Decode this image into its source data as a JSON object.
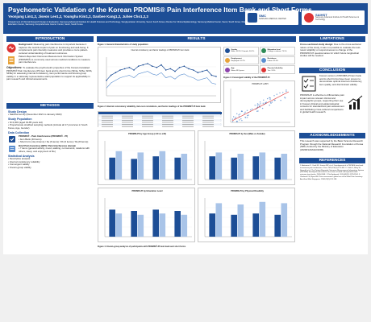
{
  "header": {
    "title": "Psychometric Validation of the Korean PROMIS® Pain Interference Item Bank and Short Forms",
    "authors": "Yeonjung Lim1,2, Jiseon Lee1,2, Youngha Kim1,2, Danbee Kang1,2, Juhee Cho1,2,3",
    "affiliations": "1Department of Clinical Research Design & Evaluation, Samsung Advanced Institute for Health Sciences and Technology, Sungkyunkwan University, Seoul, South Korea; 2Center for Clinical Epidemiology, Samsung Medical Center, Seoul, South Korea; 3Cancer Education Center, Samsung Comprehensive Cancer Center, Seoul, South Korea",
    "logos": [
      {
        "icon": "smc-logo",
        "name": "SMC",
        "sub": "SAMSUNG MEDICAL CENTER"
      },
      {
        "icon": "saihst-logo",
        "name": "SAIHST",
        "sub": "Samsung Advanced Institute for Health Sciences & Technology"
      }
    ]
  },
  "sections": {
    "introduction": "INTRODUCTION",
    "methods": "METHODS",
    "results": "RESULTS",
    "limitations": "LIMITATIONS",
    "conclusion": "CONCLUSION",
    "acknowledgements": "ACKNOWLEDGEMENTS",
    "references": "REFERENCES"
  },
  "introduction": {
    "background_label": "Background:",
    "background_text": "Measuring pain interference is important because it captures the real-life impact of pain on functioning and well-being. It complements pain intensity measures and provides a more patient-centered understanding of treatment outcomes.",
    "promis_text": "Patient-Reported Outcomes Measurement Information System (PROMIS®) is commonly used across medical conditions to measure pain interference.",
    "objectives_label": "Objectives:",
    "objectives_text": "To evaluate the psychometric properties of the Korean-translated PROMIS® Pain Interference (PI) item bank and its short forms (SF4a, SF6a, SF6b, SF8a) for assessing internal consistency, item performance and known-group validity in a nationally representative adult population to support its applicability in pain research and clinical assessments."
  },
  "methods": {
    "study_design_title": "Study Design",
    "study_design_items": [
      "National survey (December 2021 to January 2022)"
    ],
    "study_population_title": "Study Population",
    "study_population_items": [
      "N=2,000 (aged 19-85 years old)",
      "Proportionate stratified sampling methods (include all 17 provinces in South Korea, Age, Gender)"
    ],
    "data_collection_title": "Data Collection",
    "dc_item1_title": "PROMIS® - Pain Interference (PROMIS® - PI)",
    "dc_item1_points": [
      "Item Bank (40 items)",
      "Short form (4a (4 items) / 6a (6 items) / 6b (6 items) / 8a (8 items))"
    ],
    "dc_item2_title": "Brief Pain Inventory (BPI): Pain Interference domain",
    "dc_item2_points": [
      "7 items (general activity, mood, walking, normal work, relations with others, sleep, and enjoyment of life)"
    ],
    "statistical_title": "Statistical Analysis",
    "statistical_items": [
      "Descriptive analysis",
      "Internal consistency reliability",
      "Convergent validity",
      "Known-group validity"
    ]
  },
  "results": {
    "fig1_title": "Figure 1. General characteristics of study population",
    "fig1_chart_title": "Internal consistency and factor loadings of PROMIS-PI Item bank",
    "fig1_values": [
      0.82,
      0.86,
      0.88,
      0.9,
      0.91,
      0.92,
      0.9,
      0.93,
      0.94,
      0.95,
      0.93,
      0.92,
      0.94,
      0.9,
      0.91,
      0.89,
      0.92,
      0.93,
      0.91,
      0.9,
      0.88,
      0.89,
      0.9,
      0.86,
      0.85
    ],
    "stat_boxes": [
      {
        "icon": "person-icon",
        "label": "Gender",
        "value": "Male: 49.9% / Female: 50.1%"
      },
      {
        "icon": "graduation-icon",
        "label": "Education level",
        "value": "College or above: 73.1%"
      },
      {
        "icon": "job-icon",
        "label": "Employment",
        "value": "Employed: 61.2%"
      },
      {
        "icon": "home-icon",
        "label": "Residence",
        "value": "Urban: 91.6%"
      },
      {
        "icon": "age-icon",
        "label": "Age",
        "value": "Mean 48.9 years"
      },
      {
        "icon": "heart-icon",
        "label": "Physical disability",
        "value": "Yes: 3.5%"
      }
    ],
    "fig2_title": "Figure 2. Internal consistency reliability, item-rest correlations, and factor loadings of the PROMIS®-PI item bank",
    "fig3_title": "Figure 3. Convergent validity of the PROMIS®-PI",
    "fig3_chart_title": "PROMIS-PI vs BPI",
    "fig4_title": "Figure 4. Known-group analysis of participants with PROMIS®-PI item bank and short forms",
    "fig4_panels": [
      {
        "title": "PROMIS-PI by Age Group (<40 vs ≥40)",
        "values": [
          47,
          52,
          46,
          51,
          48,
          52,
          47,
          50
        ]
      },
      {
        "title": "PROMIS-PI by Sex (Male vs Female)",
        "values": [
          48,
          51,
          47,
          50,
          48,
          51,
          47,
          50
        ]
      },
      {
        "title": "PROMIS-PI by Education Level",
        "values": [
          51,
          48,
          50,
          47,
          51,
          48,
          50,
          47
        ]
      },
      {
        "title": "PROMIS-PI by Physical Disability",
        "values": [
          48,
          56,
          47,
          55,
          48,
          57,
          47,
          56
        ]
      }
    ]
  },
  "limitations": {
    "label": "Cross-sectional study design:",
    "text": "Due to the cross-sectional nature of the study, it was not possible to evaluate the test-retest reliability or responsiveness to change of the PROMIS®-PI questionnaires for which future longitudinal studies will be needed."
  },
  "conclusion": {
    "item1": "Korean version of PROMIS-PI item bank and its short forms have been proven to demonstrate optimal internal consistency, item quality, and discriminant validity.",
    "item2": "PROMIS-PI is effective to differentiate pain impact across relevant clinical and demographic groups, supporting their use in Korean clinical and epidemiological contexts for standardized pain assessment and facilitating cross-cultural comparisons in global health research."
  },
  "acknowledgements": {
    "text": "This research was supported by the Basic Science Research Program through the National Research Foundation of Korea (NRF) funded by the Ministry of Education (2020R1A6A3A01096)."
  },
  "references": {
    "text": "1. Amtmann D, Cook KF, Jensen MP, et al. Development of a PROMIS item bank to measure pain interference. Pain. 2010;150(1):173-182. 2. Cella D, Riley W, Stone A, et al. The Patient-Reported Outcomes Measurement Information System (PROMIS) developed and tested its first wave of adult self-reported health outcome item banks: 2005-2008. J Clin Epidemiol. 2010;63(11):1179-1194. 3. Cleeland CS, Ryan KM. Pain assessment: global use of the Brief Pain Inventory. Ann Acad Med Singapore. 1994;23(2):129-138."
  },
  "colors": {
    "primary": "#1d4e96",
    "accent": "#5b8fd0",
    "light": "#a9c4e8"
  }
}
